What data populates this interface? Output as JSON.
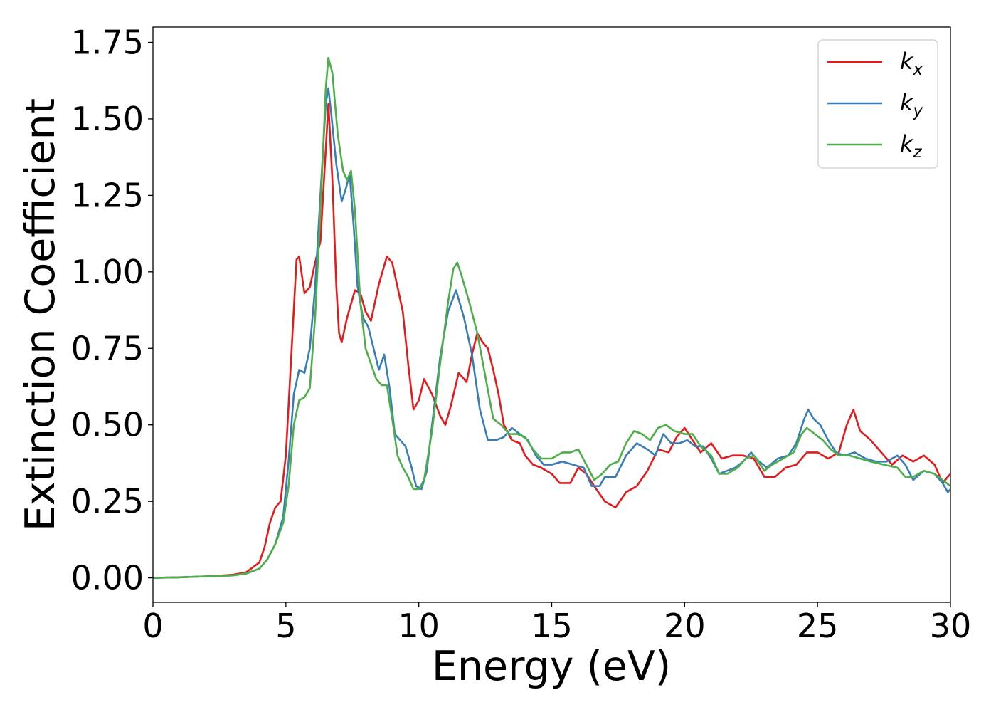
{
  "chart_data": {
    "type": "line",
    "xlabel": "Energy (eV)",
    "ylabel": "Extinction Coefficient",
    "xlim": [
      0,
      30
    ],
    "ylim": [
      -0.08,
      1.8
    ],
    "x_ticks": [
      "0",
      "5",
      "10",
      "15",
      "20",
      "25",
      "30"
    ],
    "y_ticks": [
      "0.00",
      "0.25",
      "0.50",
      "0.75",
      "1.00",
      "1.25",
      "1.50",
      "1.75"
    ],
    "grid": false,
    "legend_position": "top-right",
    "series": [
      {
        "name": "k",
        "sub": "x",
        "color": "#e41a1c",
        "points": [
          [
            0,
            0
          ],
          [
            1,
            0.002
          ],
          [
            2,
            0.005
          ],
          [
            3,
            0.01
          ],
          [
            3.5,
            0.018
          ],
          [
            4,
            0.05
          ],
          [
            4.2,
            0.1
          ],
          [
            4.4,
            0.18
          ],
          [
            4.6,
            0.23
          ],
          [
            4.8,
            0.25
          ],
          [
            5.0,
            0.4
          ],
          [
            5.2,
            0.72
          ],
          [
            5.4,
            1.04
          ],
          [
            5.5,
            1.05
          ],
          [
            5.7,
            0.93
          ],
          [
            5.9,
            0.95
          ],
          [
            6.1,
            1.03
          ],
          [
            6.3,
            1.1
          ],
          [
            6.5,
            1.4
          ],
          [
            6.6,
            1.55
          ],
          [
            6.75,
            1.3
          ],
          [
            6.9,
            0.95
          ],
          [
            7.0,
            0.8
          ],
          [
            7.1,
            0.77
          ],
          [
            7.3,
            0.85
          ],
          [
            7.6,
            0.94
          ],
          [
            7.8,
            0.93
          ],
          [
            8.0,
            0.87
          ],
          [
            8.2,
            0.84
          ],
          [
            8.5,
            0.96
          ],
          [
            8.8,
            1.05
          ],
          [
            9.0,
            1.03
          ],
          [
            9.2,
            0.95
          ],
          [
            9.4,
            0.87
          ],
          [
            9.6,
            0.7
          ],
          [
            9.8,
            0.55
          ],
          [
            10.0,
            0.58
          ],
          [
            10.2,
            0.65
          ],
          [
            10.5,
            0.6
          ],
          [
            10.8,
            0.53
          ],
          [
            11.0,
            0.5
          ],
          [
            11.2,
            0.56
          ],
          [
            11.5,
            0.67
          ],
          [
            11.8,
            0.64
          ],
          [
            12.0,
            0.73
          ],
          [
            12.2,
            0.8
          ],
          [
            12.4,
            0.77
          ],
          [
            12.6,
            0.75
          ],
          [
            12.8,
            0.68
          ],
          [
            13.0,
            0.6
          ],
          [
            13.2,
            0.5
          ],
          [
            13.5,
            0.45
          ],
          [
            13.8,
            0.44
          ],
          [
            14.0,
            0.4
          ],
          [
            14.3,
            0.37
          ],
          [
            14.6,
            0.36
          ],
          [
            15.0,
            0.34
          ],
          [
            15.3,
            0.31
          ],
          [
            15.7,
            0.31
          ],
          [
            16.0,
            0.36
          ],
          [
            16.3,
            0.34
          ],
          [
            16.6,
            0.3
          ],
          [
            17.0,
            0.25
          ],
          [
            17.4,
            0.23
          ],
          [
            17.8,
            0.28
          ],
          [
            18.2,
            0.3
          ],
          [
            18.6,
            0.35
          ],
          [
            19.0,
            0.42
          ],
          [
            19.4,
            0.41
          ],
          [
            19.7,
            0.46
          ],
          [
            20.0,
            0.49
          ],
          [
            20.3,
            0.45
          ],
          [
            20.6,
            0.41
          ],
          [
            21.0,
            0.44
          ],
          [
            21.4,
            0.39
          ],
          [
            21.8,
            0.4
          ],
          [
            22.2,
            0.4
          ],
          [
            22.6,
            0.39
          ],
          [
            23.0,
            0.33
          ],
          [
            23.4,
            0.33
          ],
          [
            23.8,
            0.36
          ],
          [
            24.2,
            0.37
          ],
          [
            24.6,
            0.41
          ],
          [
            25.0,
            0.41
          ],
          [
            25.4,
            0.39
          ],
          [
            25.8,
            0.41
          ],
          [
            26.1,
            0.5
          ],
          [
            26.35,
            0.55
          ],
          [
            26.6,
            0.48
          ],
          [
            27.0,
            0.45
          ],
          [
            27.4,
            0.41
          ],
          [
            27.8,
            0.37
          ],
          [
            28.2,
            0.4
          ],
          [
            28.6,
            0.38
          ],
          [
            29.0,
            0.4
          ],
          [
            29.4,
            0.37
          ],
          [
            29.7,
            0.31
          ],
          [
            30.0,
            0.34
          ]
        ]
      },
      {
        "name": "k",
        "sub": "y",
        "color": "#377eb8",
        "points": [
          [
            0,
            0
          ],
          [
            1,
            0.002
          ],
          [
            2,
            0.005
          ],
          [
            3,
            0.008
          ],
          [
            3.5,
            0.014
          ],
          [
            4,
            0.03
          ],
          [
            4.3,
            0.06
          ],
          [
            4.6,
            0.11
          ],
          [
            4.9,
            0.2
          ],
          [
            5.1,
            0.38
          ],
          [
            5.3,
            0.6
          ],
          [
            5.5,
            0.68
          ],
          [
            5.7,
            0.67
          ],
          [
            5.9,
            0.75
          ],
          [
            6.1,
            0.95
          ],
          [
            6.3,
            1.25
          ],
          [
            6.5,
            1.55
          ],
          [
            6.6,
            1.6
          ],
          [
            6.7,
            1.52
          ],
          [
            6.9,
            1.35
          ],
          [
            7.1,
            1.23
          ],
          [
            7.25,
            1.27
          ],
          [
            7.4,
            1.32
          ],
          [
            7.55,
            1.15
          ],
          [
            7.7,
            0.95
          ],
          [
            7.9,
            0.85
          ],
          [
            8.1,
            0.82
          ],
          [
            8.3,
            0.75
          ],
          [
            8.5,
            0.68
          ],
          [
            8.7,
            0.73
          ],
          [
            8.9,
            0.62
          ],
          [
            9.1,
            0.47
          ],
          [
            9.3,
            0.45
          ],
          [
            9.5,
            0.43
          ],
          [
            9.7,
            0.37
          ],
          [
            9.9,
            0.3
          ],
          [
            10.1,
            0.29
          ],
          [
            10.3,
            0.35
          ],
          [
            10.5,
            0.5
          ],
          [
            10.8,
            0.72
          ],
          [
            11.1,
            0.87
          ],
          [
            11.4,
            0.94
          ],
          [
            11.7,
            0.85
          ],
          [
            12.0,
            0.73
          ],
          [
            12.3,
            0.55
          ],
          [
            12.6,
            0.45
          ],
          [
            12.9,
            0.45
          ],
          [
            13.2,
            0.46
          ],
          [
            13.5,
            0.49
          ],
          [
            13.8,
            0.47
          ],
          [
            14.1,
            0.45
          ],
          [
            14.4,
            0.4
          ],
          [
            14.7,
            0.37
          ],
          [
            15.0,
            0.37
          ],
          [
            15.4,
            0.38
          ],
          [
            15.8,
            0.37
          ],
          [
            16.2,
            0.36
          ],
          [
            16.5,
            0.3
          ],
          [
            16.8,
            0.3
          ],
          [
            17.0,
            0.33
          ],
          [
            17.4,
            0.33
          ],
          [
            17.8,
            0.4
          ],
          [
            18.2,
            0.44
          ],
          [
            18.6,
            0.42
          ],
          [
            18.9,
            0.4
          ],
          [
            19.2,
            0.47
          ],
          [
            19.5,
            0.44
          ],
          [
            19.8,
            0.44
          ],
          [
            20.1,
            0.45
          ],
          [
            20.4,
            0.43
          ],
          [
            20.7,
            0.43
          ],
          [
            21.0,
            0.39
          ],
          [
            21.3,
            0.34
          ],
          [
            21.6,
            0.35
          ],
          [
            21.9,
            0.36
          ],
          [
            22.2,
            0.38
          ],
          [
            22.5,
            0.41
          ],
          [
            22.8,
            0.38
          ],
          [
            23.1,
            0.36
          ],
          [
            23.5,
            0.39
          ],
          [
            23.9,
            0.4
          ],
          [
            24.2,
            0.44
          ],
          [
            24.5,
            0.52
          ],
          [
            24.65,
            0.55
          ],
          [
            24.85,
            0.52
          ],
          [
            25.1,
            0.5
          ],
          [
            25.4,
            0.45
          ],
          [
            25.7,
            0.41
          ],
          [
            26.0,
            0.4
          ],
          [
            26.4,
            0.41
          ],
          [
            26.8,
            0.39
          ],
          [
            27.2,
            0.38
          ],
          [
            27.6,
            0.38
          ],
          [
            28.0,
            0.4
          ],
          [
            28.3,
            0.37
          ],
          [
            28.6,
            0.32
          ],
          [
            29.0,
            0.35
          ],
          [
            29.4,
            0.34
          ],
          [
            29.7,
            0.31
          ],
          [
            29.9,
            0.28
          ],
          [
            30.0,
            0.29
          ]
        ]
      },
      {
        "name": "k",
        "sub": "z",
        "color": "#4daf4a",
        "points": [
          [
            0,
            0
          ],
          [
            1,
            0.002
          ],
          [
            2,
            0.005
          ],
          [
            3,
            0.008
          ],
          [
            3.5,
            0.014
          ],
          [
            4,
            0.03
          ],
          [
            4.3,
            0.06
          ],
          [
            4.6,
            0.11
          ],
          [
            4.9,
            0.18
          ],
          [
            5.1,
            0.3
          ],
          [
            5.3,
            0.5
          ],
          [
            5.5,
            0.58
          ],
          [
            5.7,
            0.59
          ],
          [
            5.9,
            0.62
          ],
          [
            6.1,
            0.85
          ],
          [
            6.3,
            1.2
          ],
          [
            6.5,
            1.6
          ],
          [
            6.6,
            1.7
          ],
          [
            6.75,
            1.65
          ],
          [
            6.95,
            1.45
          ],
          [
            7.15,
            1.33
          ],
          [
            7.3,
            1.3
          ],
          [
            7.45,
            1.33
          ],
          [
            7.6,
            1.2
          ],
          [
            7.8,
            0.9
          ],
          [
            8.0,
            0.75
          ],
          [
            8.2,
            0.7
          ],
          [
            8.4,
            0.65
          ],
          [
            8.6,
            0.63
          ],
          [
            8.8,
            0.63
          ],
          [
            9.0,
            0.52
          ],
          [
            9.2,
            0.4
          ],
          [
            9.4,
            0.36
          ],
          [
            9.6,
            0.33
          ],
          [
            9.8,
            0.29
          ],
          [
            10.0,
            0.29
          ],
          [
            10.2,
            0.32
          ],
          [
            10.5,
            0.48
          ],
          [
            10.8,
            0.7
          ],
          [
            11.1,
            0.9
          ],
          [
            11.3,
            1.01
          ],
          [
            11.45,
            1.03
          ],
          [
            11.6,
            0.99
          ],
          [
            11.9,
            0.9
          ],
          [
            12.2,
            0.8
          ],
          [
            12.5,
            0.66
          ],
          [
            12.8,
            0.52
          ],
          [
            13.1,
            0.5
          ],
          [
            13.4,
            0.47
          ],
          [
            13.7,
            0.47
          ],
          [
            14.0,
            0.46
          ],
          [
            14.3,
            0.42
          ],
          [
            14.6,
            0.39
          ],
          [
            15.0,
            0.39
          ],
          [
            15.4,
            0.41
          ],
          [
            15.7,
            0.41
          ],
          [
            16.0,
            0.42
          ],
          [
            16.3,
            0.37
          ],
          [
            16.6,
            0.32
          ],
          [
            16.9,
            0.34
          ],
          [
            17.2,
            0.37
          ],
          [
            17.5,
            0.38
          ],
          [
            17.8,
            0.44
          ],
          [
            18.1,
            0.48
          ],
          [
            18.4,
            0.47
          ],
          [
            18.7,
            0.45
          ],
          [
            19.0,
            0.49
          ],
          [
            19.3,
            0.5
          ],
          [
            19.6,
            0.48
          ],
          [
            20.0,
            0.47
          ],
          [
            20.3,
            0.47
          ],
          [
            20.6,
            0.43
          ],
          [
            21.0,
            0.4
          ],
          [
            21.3,
            0.34
          ],
          [
            21.6,
            0.34
          ],
          [
            22.0,
            0.36
          ],
          [
            22.3,
            0.39
          ],
          [
            22.6,
            0.4
          ],
          [
            23.0,
            0.35
          ],
          [
            23.3,
            0.37
          ],
          [
            23.7,
            0.39
          ],
          [
            24.1,
            0.41
          ],
          [
            24.4,
            0.47
          ],
          [
            24.6,
            0.49
          ],
          [
            24.9,
            0.47
          ],
          [
            25.2,
            0.45
          ],
          [
            25.5,
            0.42
          ],
          [
            25.8,
            0.4
          ],
          [
            26.2,
            0.4
          ],
          [
            26.6,
            0.39
          ],
          [
            27.0,
            0.38
          ],
          [
            27.5,
            0.37
          ],
          [
            28.0,
            0.36
          ],
          [
            28.3,
            0.33
          ],
          [
            28.6,
            0.33
          ],
          [
            29.0,
            0.35
          ],
          [
            29.4,
            0.34
          ],
          [
            29.7,
            0.32
          ],
          [
            30.0,
            0.3
          ]
        ]
      }
    ]
  }
}
